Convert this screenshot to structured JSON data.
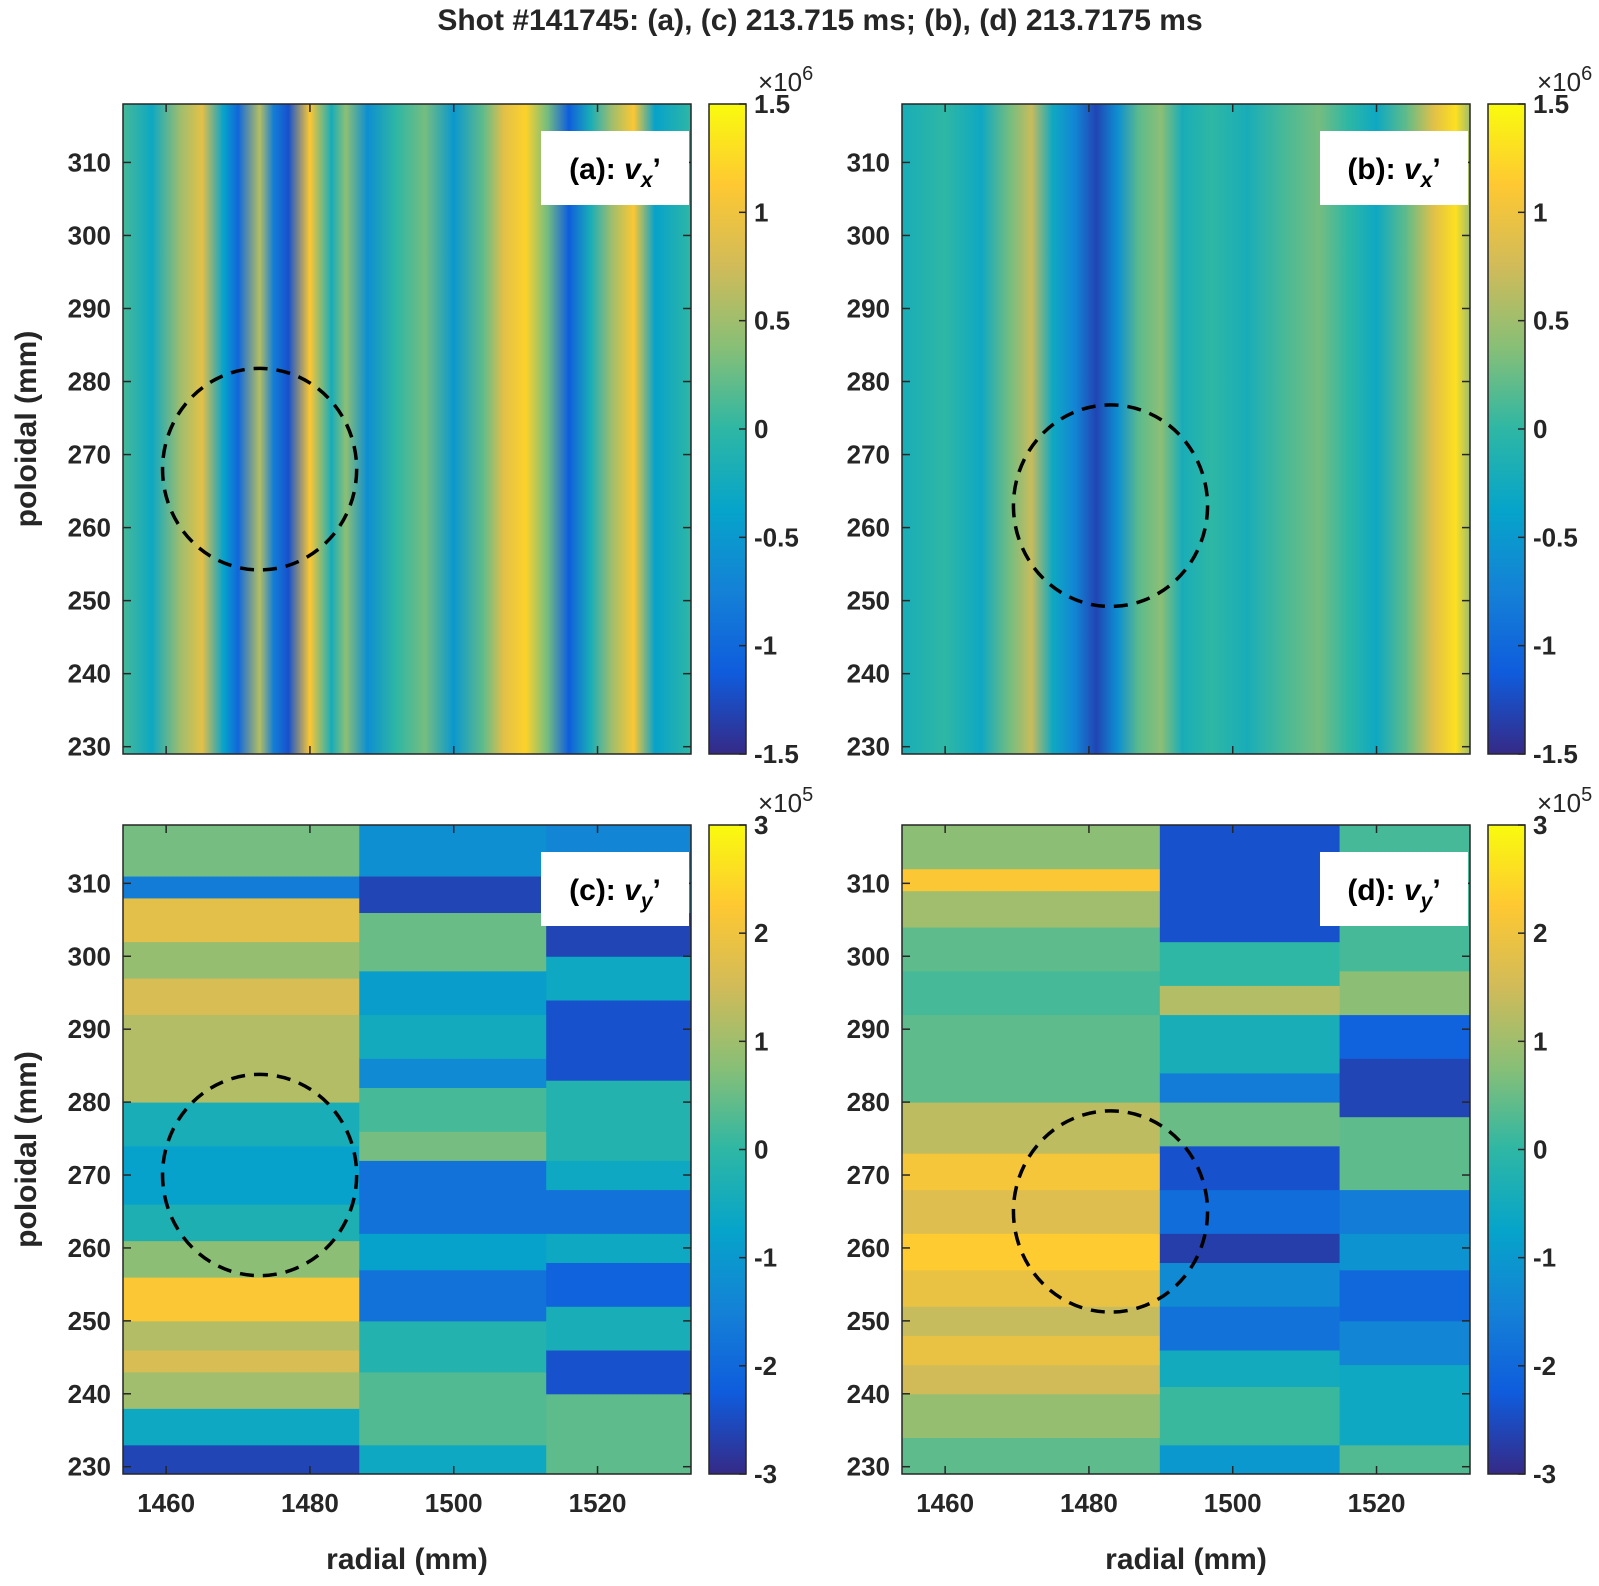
{
  "figure_title": "Shot #141745: (a), (c) 213.715 ms; (b), (d) 213.7175 ms",
  "colormap": [
    "#352a87",
    "#0f5cdd",
    "#1481d6",
    "#06a4ca",
    "#2eb7a4",
    "#87bf77",
    "#d1bb59",
    "#fec832",
    "#f9fb0e"
  ],
  "chart_data": [
    {
      "type": "heatmap",
      "id": "a",
      "panel_label_prefix": "(a): ",
      "panel_label_var": "v",
      "panel_label_sub": "x",
      "panel_label_suffix": "’",
      "xlabel": "",
      "ylabel": "poloidal (mm)",
      "xlim": [
        1454,
        1533
      ],
      "ylim": [
        229,
        318
      ],
      "xticks": [
        1460,
        1480,
        1500,
        1520
      ],
      "xtick_labels_shown": false,
      "yticks": [
        230,
        240,
        250,
        260,
        270,
        280,
        290,
        300,
        310
      ],
      "colorbar": {
        "ticks": [
          -1.5,
          -1,
          -0.5,
          0,
          0.5,
          1,
          1.5
        ],
        "tick_labels": [
          "-1.5",
          "-1",
          "-0.5",
          "0",
          "0.5",
          "1",
          "1.5"
        ],
        "multiplier_base": "×10",
        "multiplier_exp": "6",
        "range": [
          -1.5,
          1.5
        ]
      },
      "circle": {
        "center": [
          1473,
          268
        ],
        "radius_x": 13.5,
        "radius_y": 13.8
      },
      "pattern": "vertical",
      "columns": [
        {
          "x": 1454,
          "v": 0.1
        },
        {
          "x": 1458,
          "v": -0.3
        },
        {
          "x": 1462,
          "v": 0.5
        },
        {
          "x": 1465,
          "v": 0.9
        },
        {
          "x": 1468,
          "v": -0.4
        },
        {
          "x": 1470,
          "v": -1.0
        },
        {
          "x": 1473,
          "v": 0.6
        },
        {
          "x": 1475,
          "v": -0.8
        },
        {
          "x": 1477,
          "v": -1.2
        },
        {
          "x": 1480,
          "v": 1.1
        },
        {
          "x": 1483,
          "v": -0.2
        },
        {
          "x": 1485,
          "v": 0.4
        },
        {
          "x": 1488,
          "v": -0.6
        },
        {
          "x": 1492,
          "v": 0.0
        },
        {
          "x": 1496,
          "v": 0.3
        },
        {
          "x": 1500,
          "v": -0.5
        },
        {
          "x": 1504,
          "v": 0.2
        },
        {
          "x": 1507,
          "v": 0.9
        },
        {
          "x": 1510,
          "v": 1.2
        },
        {
          "x": 1513,
          "v": 0.3
        },
        {
          "x": 1516,
          "v": -1.1
        },
        {
          "x": 1519,
          "v": -0.2
        },
        {
          "x": 1522,
          "v": 0.5
        },
        {
          "x": 1525,
          "v": 1.1
        },
        {
          "x": 1528,
          "v": -0.4
        },
        {
          "x": 1533,
          "v": 0.0
        }
      ]
    },
    {
      "type": "heatmap",
      "id": "b",
      "panel_label_prefix": "(b): ",
      "panel_label_var": "v",
      "panel_label_sub": "x",
      "panel_label_suffix": "’",
      "xlabel": "",
      "ylabel": "",
      "xlim": [
        1454,
        1533
      ],
      "ylim": [
        229,
        318
      ],
      "xticks": [
        1460,
        1480,
        1500,
        1520
      ],
      "xtick_labels_shown": false,
      "yticks": [
        230,
        240,
        250,
        260,
        270,
        280,
        290,
        300,
        310
      ],
      "colorbar": {
        "ticks": [
          -1.5,
          -1,
          -0.5,
          0,
          0.5,
          1,
          1.5
        ],
        "tick_labels": [
          "-1.5",
          "-1",
          "-0.5",
          "0",
          "0.5",
          "1",
          "1.5"
        ],
        "multiplier_base": "×10",
        "multiplier_exp": "6",
        "range": [
          -1.5,
          1.5
        ]
      },
      "circle": {
        "center": [
          1483,
          263
        ],
        "radius_x": 13.5,
        "radius_y": 13.8
      },
      "pattern": "vertical",
      "columns": [
        {
          "x": 1454,
          "v": -0.2
        },
        {
          "x": 1460,
          "v": 0.0
        },
        {
          "x": 1465,
          "v": -0.3
        },
        {
          "x": 1469,
          "v": 0.3
        },
        {
          "x": 1472,
          "v": 0.7
        },
        {
          "x": 1475,
          "v": -0.3
        },
        {
          "x": 1478,
          "v": -0.7
        },
        {
          "x": 1481,
          "v": -1.3
        },
        {
          "x": 1484,
          "v": -0.6
        },
        {
          "x": 1487,
          "v": 0.2
        },
        {
          "x": 1490,
          "v": 0.4
        },
        {
          "x": 1493,
          "v": -0.2
        },
        {
          "x": 1497,
          "v": 0.0
        },
        {
          "x": 1502,
          "v": -0.2
        },
        {
          "x": 1507,
          "v": 0.1
        },
        {
          "x": 1512,
          "v": 0.3
        },
        {
          "x": 1516,
          "v": 0.0
        },
        {
          "x": 1520,
          "v": -0.3
        },
        {
          "x": 1524,
          "v": 0.2
        },
        {
          "x": 1528,
          "v": 0.9
        },
        {
          "x": 1531,
          "v": 1.3
        },
        {
          "x": 1533,
          "v": 0.5
        }
      ]
    },
    {
      "type": "heatmap",
      "id": "c",
      "panel_label_prefix": "(c): ",
      "panel_label_var": "v",
      "panel_label_sub": "y",
      "panel_label_suffix": "’",
      "xlabel": "radial (mm)",
      "ylabel": "poloidal (mm)",
      "xlim": [
        1454,
        1533
      ],
      "ylim": [
        229,
        318
      ],
      "xticks": [
        1460,
        1480,
        1500,
        1520
      ],
      "xtick_labels_shown": true,
      "yticks": [
        230,
        240,
        250,
        260,
        270,
        280,
        290,
        300,
        310
      ],
      "colorbar": {
        "ticks": [
          -3,
          -2,
          -1,
          0,
          1,
          2,
          3
        ],
        "tick_labels": [
          "-3",
          "-2",
          "-1",
          "0",
          "1",
          "2",
          "3"
        ],
        "multiplier_base": "×10",
        "multiplier_exp": "5",
        "range": [
          -3,
          3
        ]
      },
      "circle": {
        "center": [
          1473,
          270
        ],
        "radius_x": 13.5,
        "radius_y": 13.8
      },
      "pattern": "bands",
      "regions": [
        {
          "x0": 1454,
          "x1": 1487,
          "bands": [
            [
              229,
              233,
              -2.6
            ],
            [
              233,
              238,
              -0.6
            ],
            [
              238,
              243,
              1.0
            ],
            [
              243,
              246,
              1.6
            ],
            [
              246,
              250,
              1.2
            ],
            [
              250,
              256,
              2.2
            ],
            [
              256,
              261,
              0.8
            ],
            [
              261,
              266,
              -0.3
            ],
            [
              266,
              274,
              -0.8
            ],
            [
              274,
              280,
              -0.4
            ],
            [
              280,
              292,
              1.2
            ],
            [
              292,
              297,
              1.6
            ],
            [
              297,
              302,
              0.9
            ],
            [
              302,
              308,
              1.8
            ],
            [
              308,
              311,
              -1.6
            ],
            [
              311,
              318,
              0.6
            ]
          ]
        },
        {
          "x0": 1487,
          "x1": 1513,
          "bands": [
            [
              229,
              233,
              -0.6
            ],
            [
              233,
              243,
              0.3
            ],
            [
              243,
              250,
              -0.2
            ],
            [
              250,
              257,
              -1.8
            ],
            [
              257,
              262,
              -0.8
            ],
            [
              262,
              272,
              -1.8
            ],
            [
              272,
              276,
              0.6
            ],
            [
              276,
              282,
              0.2
            ],
            [
              282,
              286,
              -1.3
            ],
            [
              286,
              292,
              -0.5
            ],
            [
              292,
              298,
              -0.9
            ],
            [
              298,
              306,
              0.5
            ],
            [
              306,
              311,
              -2.6
            ],
            [
              311,
              318,
              -1.2
            ]
          ]
        },
        {
          "x0": 1513,
          "x1": 1533,
          "bands": [
            [
              229,
              240,
              0.4
            ],
            [
              240,
              246,
              -2.4
            ],
            [
              246,
              252,
              -0.4
            ],
            [
              252,
              258,
              -2.1
            ],
            [
              258,
              262,
              -0.6
            ],
            [
              262,
              268,
              -1.8
            ],
            [
              268,
              272,
              -0.6
            ],
            [
              272,
              283,
              -0.2
            ],
            [
              283,
              294,
              -2.4
            ],
            [
              294,
              300,
              -0.6
            ],
            [
              300,
              306,
              -2.6
            ],
            [
              306,
              312,
              -1.0
            ],
            [
              312,
              318,
              -1.4
            ]
          ]
        }
      ]
    },
    {
      "type": "heatmap",
      "id": "d",
      "panel_label_prefix": "(d): ",
      "panel_label_var": "v",
      "panel_label_sub": "y",
      "panel_label_suffix": "’",
      "xlabel": "radial (mm)",
      "ylabel": "",
      "xlim": [
        1454,
        1533
      ],
      "ylim": [
        229,
        318
      ],
      "xticks": [
        1460,
        1480,
        1500,
        1520
      ],
      "xtick_labels_shown": true,
      "yticks": [
        230,
        240,
        250,
        260,
        270,
        280,
        290,
        300,
        310
      ],
      "colorbar": {
        "ticks": [
          -3,
          -2,
          -1,
          0,
          1,
          2,
          3
        ],
        "tick_labels": [
          "-3",
          "-2",
          "-1",
          "0",
          "1",
          "2",
          "3"
        ],
        "multiplier_base": "×10",
        "multiplier_exp": "5",
        "range": [
          -3,
          3
        ]
      },
      "circle": {
        "center": [
          1483,
          265
        ],
        "radius_x": 13.5,
        "radius_y": 13.8
      },
      "pattern": "bands",
      "regions": [
        {
          "x0": 1454,
          "x1": 1490,
          "bands": [
            [
              229,
              234,
              0.4
            ],
            [
              234,
              240,
              0.9
            ],
            [
              240,
              244,
              1.5
            ],
            [
              244,
              248,
              1.9
            ],
            [
              248,
              252,
              1.4
            ],
            [
              252,
              257,
              1.9
            ],
            [
              257,
              262,
              2.3
            ],
            [
              262,
              268,
              1.7
            ],
            [
              268,
              273,
              2.1
            ],
            [
              273,
              280,
              1.3
            ],
            [
              280,
              292,
              0.4
            ],
            [
              292,
              298,
              0.2
            ],
            [
              298,
              304,
              0.4
            ],
            [
              304,
              309,
              1.0
            ],
            [
              309,
              312,
              2.2
            ],
            [
              312,
              318,
              0.8
            ]
          ]
        },
        {
          "x0": 1490,
          "x1": 1515,
          "bands": [
            [
              229,
              233,
              -1.0
            ],
            [
              233,
              241,
              0.1
            ],
            [
              241,
              246,
              -0.5
            ],
            [
              246,
              252,
              -1.8
            ],
            [
              252,
              258,
              -1.3
            ],
            [
              258,
              262,
              -2.7
            ],
            [
              262,
              268,
              -1.9
            ],
            [
              268,
              274,
              -2.4
            ],
            [
              274,
              280,
              0.5
            ],
            [
              280,
              284,
              -1.6
            ],
            [
              284,
              292,
              -0.4
            ],
            [
              292,
              296,
              1.2
            ],
            [
              296,
              302,
              0.0
            ],
            [
              302,
              318,
              -2.4
            ]
          ]
        },
        {
          "x0": 1515,
          "x1": 1533,
          "bands": [
            [
              229,
              233,
              0.3
            ],
            [
              233,
              244,
              -0.6
            ],
            [
              244,
              250,
              -1.4
            ],
            [
              250,
              257,
              -2.0
            ],
            [
              257,
              262,
              -1.1
            ],
            [
              262,
              268,
              -1.6
            ],
            [
              268,
              278,
              0.4
            ],
            [
              278,
              286,
              -2.6
            ],
            [
              286,
              292,
              -2.1
            ],
            [
              292,
              298,
              0.8
            ],
            [
              298,
              318,
              0.2
            ]
          ]
        }
      ]
    }
  ]
}
